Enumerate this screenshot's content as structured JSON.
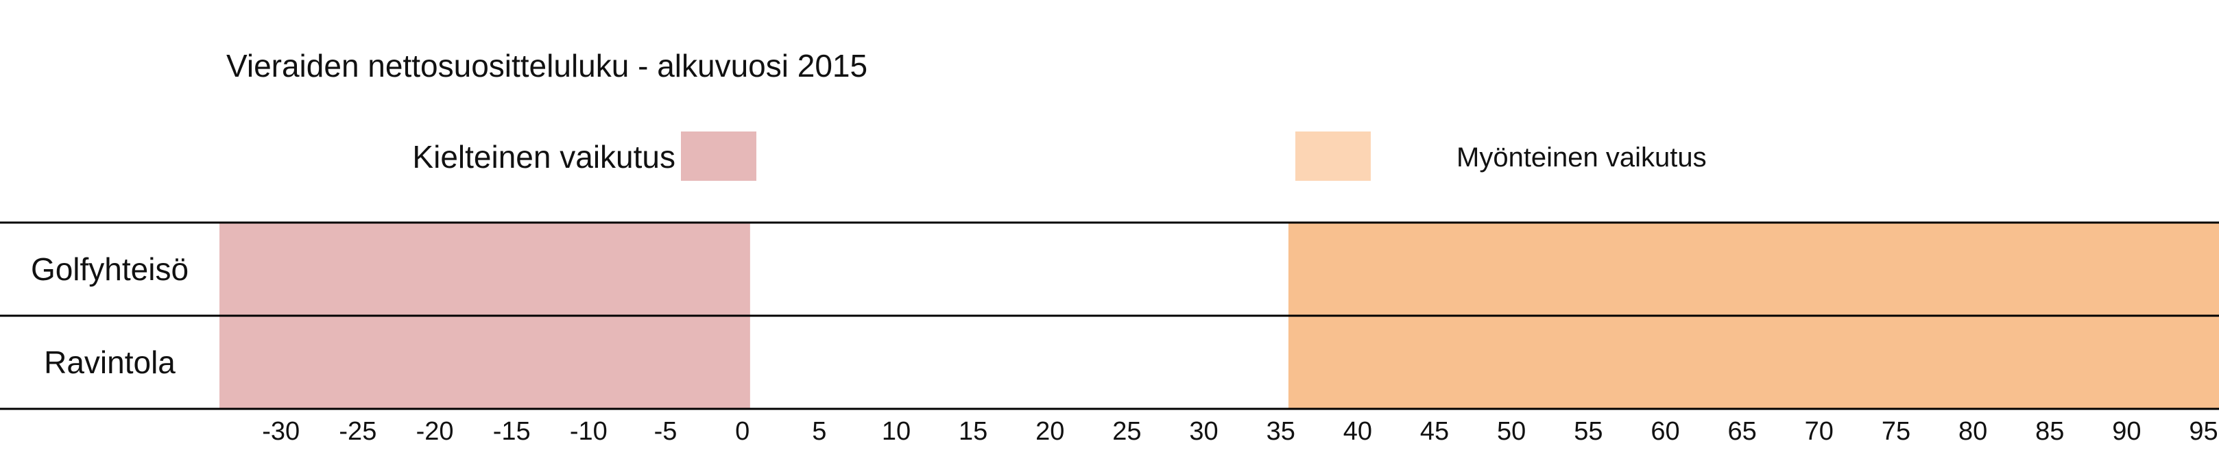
{
  "chart_data": {
    "type": "bar",
    "title": "Vieraiden nettosuositteluluku - alkuvuosi 2015",
    "legend": {
      "negative_label": "Kielteinen vaikutus",
      "positive_label": "Myönteinen vaikutus",
      "placement": "top"
    },
    "categories": [
      "Golfyhteisö",
      "Ravintola"
    ],
    "xlim": [
      -34,
      96
    ],
    "x_ticks": [
      "-30",
      "-25",
      "-20",
      "-15",
      "-10",
      "-5",
      "0",
      "5",
      "10",
      "15",
      "20",
      "25",
      "30",
      "35",
      "40",
      "45",
      "50",
      "55",
      "60",
      "65",
      "70",
      "75",
      "80",
      "85",
      "90",
      "95"
    ],
    "series": [
      {
        "name": "Kielteinen vaikutus",
        "color": "#e6b8b8",
        "ranges": [
          [
            -34,
            0.5
          ],
          [
            -34,
            0.5
          ]
        ]
      },
      {
        "name": "Myönteinen vaikutus",
        "color": "#f8c08f",
        "ranges": [
          [
            35.5,
            96
          ],
          [
            35.5,
            96
          ]
        ]
      }
    ],
    "legend_swatch_colors": {
      "negative": "#e6b8b8",
      "positive": "#fcd5b4"
    },
    "grid": false
  }
}
